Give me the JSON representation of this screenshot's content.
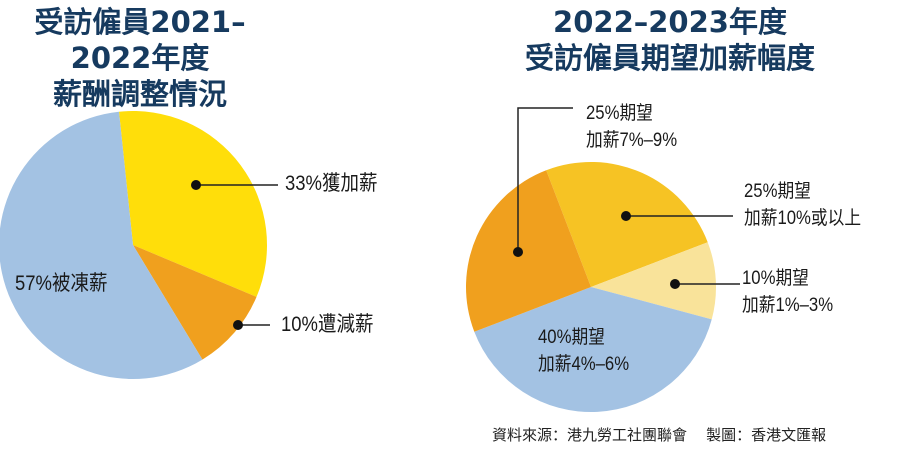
{
  "chart_data": [
    {
      "type": "pie",
      "title": [
        "受訪僱員2021–2022年度",
        "薪酬調整情況"
      ],
      "slices": [
        {
          "label": "33%獲加薪",
          "value": 33,
          "color": "#ffde0a"
        },
        {
          "label": "10%遭減薪",
          "value": 10,
          "color": "#f0a01e"
        },
        {
          "label": "57%被凍薪",
          "value": 57,
          "color": "#a3c2e3"
        }
      ]
    },
    {
      "type": "pie",
      "title": [
        "2022–2023年度",
        "受訪僱員期望加薪幅度"
      ],
      "slices": [
        {
          "label": [
            "25%期望",
            "加薪10%或以上"
          ],
          "value": 25,
          "color": "#f6c324"
        },
        {
          "label": [
            "10%期望",
            "加薪1%–3%"
          ],
          "value": 10,
          "color": "#f9e39a"
        },
        {
          "label": [
            "40%期望",
            "加薪4%–6%"
          ],
          "value": 40,
          "color": "#a3c2e3"
        },
        {
          "label": [
            "25%期望",
            "加薪7%–9%"
          ],
          "value": 25,
          "color": "#f0a01e"
        }
      ]
    }
  ],
  "footer": {
    "source": "資料來源：港九勞工社團聯會",
    "credit": "製圖：香港文匯報"
  }
}
